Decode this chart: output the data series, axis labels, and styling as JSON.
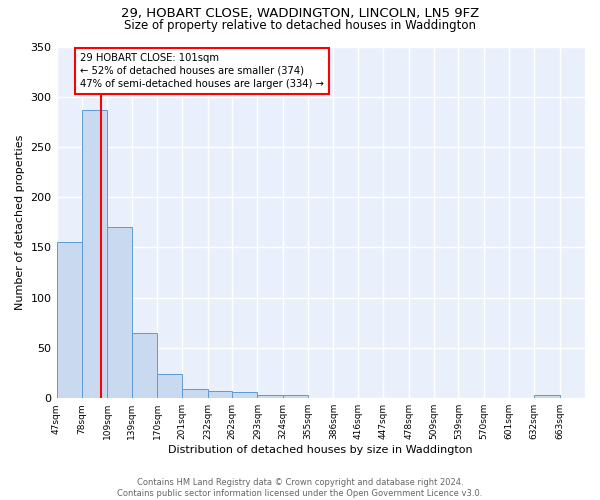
{
  "title": "29, HOBART CLOSE, WADDINGTON, LINCOLN, LN5 9FZ",
  "subtitle": "Size of property relative to detached houses in Waddington",
  "xlabel": "Distribution of detached houses by size in Waddington",
  "ylabel": "Number of detached properties",
  "bar_edges": [
    47,
    78,
    109,
    139,
    170,
    201,
    232,
    262,
    293,
    324,
    355,
    386,
    416,
    447,
    478,
    509,
    539,
    570,
    601,
    632,
    663,
    694
  ],
  "bar_heights": [
    155,
    287,
    170,
    65,
    24,
    9,
    7,
    6,
    3,
    3,
    0,
    0,
    0,
    0,
    0,
    0,
    0,
    0,
    0,
    3,
    0
  ],
  "bar_color": "#c9d9f0",
  "bar_edge_color": "#5b9bd5",
  "red_line_x": 101,
  "annotation_line1": "29 HOBART CLOSE: 101sqm",
  "annotation_line2": "← 52% of detached houses are smaller (374)",
  "annotation_line3": "47% of semi-detached houses are larger (334) →",
  "annotation_box_color": "white",
  "annotation_box_edge": "red",
  "ylim": [
    0,
    350
  ],
  "yticks": [
    0,
    50,
    100,
    150,
    200,
    250,
    300,
    350
  ],
  "bg_color": "#eaf0fb",
  "grid_color": "white",
  "footer_text": "Contains HM Land Registry data © Crown copyright and database right 2024.\nContains public sector information licensed under the Open Government Licence v3.0.",
  "tick_labels": [
    "47sqm",
    "78sqm",
    "109sqm",
    "139sqm",
    "170sqm",
    "201sqm",
    "232sqm",
    "262sqm",
    "293sqm",
    "324sqm",
    "355sqm",
    "386sqm",
    "416sqm",
    "447sqm",
    "478sqm",
    "509sqm",
    "539sqm",
    "570sqm",
    "601sqm",
    "632sqm",
    "663sqm"
  ]
}
